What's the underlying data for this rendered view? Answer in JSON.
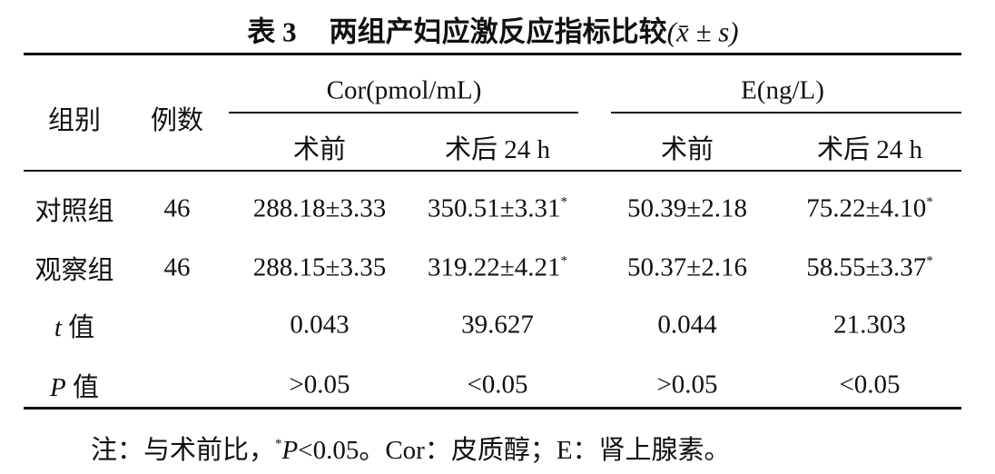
{
  "title": {
    "label": "表 3",
    "text": "两组产妇应激反应指标比较",
    "suffix": "(x̄ ± s)"
  },
  "table": {
    "header": {
      "group": "组别",
      "count": "例数",
      "cor": "Cor(pmol/mL)",
      "e": "E(ng/L)",
      "sub": [
        "术前",
        "术后 24 h",
        "术前",
        "术后 24 h"
      ]
    },
    "rows": [
      {
        "label": {
          "text": "对照组"
        },
        "count": "46",
        "values": [
          {
            "text": "288.18±3.33"
          },
          {
            "text": "350.51±3.31",
            "sup": "*"
          },
          {
            "text": "50.39±2.18"
          },
          {
            "text": "75.22±4.10",
            "sup": "*"
          }
        ]
      },
      {
        "label": {
          "text": "观察组"
        },
        "count": "46",
        "values": [
          {
            "text": "288.15±3.35"
          },
          {
            "text": "319.22±4.21",
            "sup": "*"
          },
          {
            "text": "50.37±2.16"
          },
          {
            "text": "58.55±3.37",
            "sup": "*"
          }
        ]
      },
      {
        "label": {
          "italic": "t",
          "text": "值"
        },
        "values": [
          {
            "text": "0.043"
          },
          {
            "text": "39.627"
          },
          {
            "text": "0.044"
          },
          {
            "text": "21.303"
          }
        ]
      },
      {
        "label": {
          "italic": "P",
          "text": "值"
        },
        "values": [
          {
            "text": ">0.05"
          },
          {
            "text": "<0.05"
          },
          {
            "text": ">0.05"
          },
          {
            "text": "<0.05"
          }
        ]
      }
    ]
  },
  "note": {
    "prefix": "注：与术前比，",
    "sup": "*",
    "italic": "P",
    "rest": "<0.05。Cor：皮质醇；E：肾上腺素。"
  }
}
